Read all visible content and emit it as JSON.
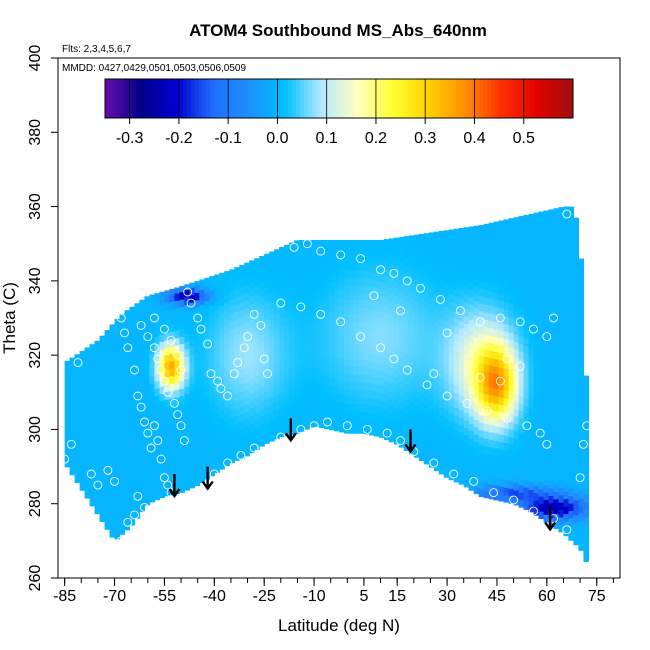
{
  "chart_data": {
    "type": "heatmap",
    "title": "ATOM4 Southbound MS_Abs_640nm",
    "subtitle_flights": "Flts: 2,3,4,5,6,7",
    "subtitle_dates": "MMDD: 0427,0429,0501,0503,0506,0509",
    "xlabel": "Latitude (deg N)",
    "ylabel": "Theta (C)",
    "xlim": [
      -87,
      82
    ],
    "ylim": [
      260,
      400
    ],
    "x_ticks": [
      "-85",
      "-70",
      "-55",
      "-40",
      "-25",
      "-10",
      "5",
      "15",
      "30",
      "45",
      "60",
      "75"
    ],
    "y_ticks": [
      "260",
      "280",
      "300",
      "320",
      "340",
      "360",
      "380",
      "400"
    ],
    "colorbar": {
      "min": -0.35,
      "max": 0.6,
      "ticks": [
        "-0.3",
        "-0.2",
        "-0.1",
        "0.0",
        "0.1",
        "0.2",
        "0.3",
        "0.4",
        "0.5"
      ],
      "colors": [
        "#6a0dad",
        "#00008b",
        "#0000d0",
        "#1f6fff",
        "#1e90ff",
        "#00bfff",
        "#b0e8ff",
        "#ffffc0",
        "#ffff33",
        "#ffd000",
        "#ff9000",
        "#ff3000",
        "#e00000",
        "#a01010"
      ]
    },
    "background_value": 0.0,
    "domain_top": [
      [
        -85,
        318
      ],
      [
        -75,
        324
      ],
      [
        -68,
        331
      ],
      [
        -60,
        336
      ],
      [
        -52,
        338
      ],
      [
        -45,
        340
      ],
      [
        -35,
        343
      ],
      [
        -25,
        347
      ],
      [
        -15,
        351
      ],
      [
        -5,
        351
      ],
      [
        10,
        351
      ],
      [
        25,
        353
      ],
      [
        40,
        355
      ],
      [
        55,
        358
      ],
      [
        65,
        360
      ],
      [
        68,
        360
      ],
      [
        70,
        352
      ],
      [
        71,
        328
      ],
      [
        72,
        310
      ]
    ],
    "domain_bottom": [
      [
        -85,
        291
      ],
      [
        -80,
        284
      ],
      [
        -75,
        277
      ],
      [
        -70,
        270
      ],
      [
        -65,
        274
      ],
      [
        -60,
        280
      ],
      [
        -55,
        282
      ],
      [
        -50,
        283
      ],
      [
        -45,
        285
      ],
      [
        -40,
        288
      ],
      [
        -35,
        291
      ],
      [
        -30,
        293
      ],
      [
        -25,
        296
      ],
      [
        -20,
        298
      ],
      [
        -15,
        299
      ],
      [
        -10,
        301
      ],
      [
        -5,
        300
      ],
      [
        0,
        299
      ],
      [
        5,
        299
      ],
      [
        10,
        298
      ],
      [
        15,
        296
      ],
      [
        20,
        293
      ],
      [
        25,
        290
      ],
      [
        30,
        287
      ],
      [
        35,
        285
      ],
      [
        40,
        282
      ],
      [
        45,
        281
      ],
      [
        50,
        280
      ],
      [
        55,
        278
      ],
      [
        60,
        275
      ],
      [
        65,
        272
      ],
      [
        70,
        268
      ],
      [
        72,
        264
      ]
    ],
    "anomalies": [
      {
        "lat": -53,
        "theta": 317,
        "value": 0.35,
        "rx": 4,
        "ry": 6
      },
      {
        "lat": 45,
        "theta": 312,
        "value": 0.3,
        "rx": 6,
        "ry": 10
      },
      {
        "lat": 40,
        "theta": 318,
        "value": 0.15,
        "rx": 10,
        "ry": 14
      },
      {
        "lat": -48,
        "theta": 336,
        "value": -0.25,
        "rx": 6,
        "ry": 2
      },
      {
        "lat": 62,
        "theta": 279,
        "value": -0.25,
        "rx": 10,
        "ry": 3
      },
      {
        "lat": 50,
        "theta": 283,
        "value": -0.15,
        "rx": 12,
        "ry": 2
      },
      {
        "lat": -30,
        "theta": 320,
        "value": 0.08,
        "rx": 12,
        "ry": 16
      },
      {
        "lat": 10,
        "theta": 325,
        "value": 0.07,
        "rx": 18,
        "ry": 18
      }
    ],
    "observations": [
      [
        -85,
        292
      ],
      [
        -83,
        296
      ],
      [
        -81,
        318
      ],
      [
        -77,
        288
      ],
      [
        -75,
        285
      ],
      [
        -72,
        289
      ],
      [
        -70,
        286
      ],
      [
        -68,
        270
      ],
      [
        -66,
        275
      ],
      [
        -64,
        277
      ],
      [
        -63,
        282
      ],
      [
        -61,
        279
      ],
      [
        -68,
        330
      ],
      [
        -67,
        326
      ],
      [
        -66,
        322
      ],
      [
        -64,
        316
      ],
      [
        -63,
        309
      ],
      [
        -62,
        306
      ],
      [
        -61,
        302
      ],
      [
        -60,
        299
      ],
      [
        -59,
        295
      ],
      [
        -58,
        301
      ],
      [
        -57,
        297
      ],
      [
        -56,
        292
      ],
      [
        -55,
        287
      ],
      [
        -54,
        285
      ],
      [
        -53,
        283
      ],
      [
        -62,
        328
      ],
      [
        -60,
        325
      ],
      [
        -58,
        322
      ],
      [
        -57,
        319
      ],
      [
        -56,
        316
      ],
      [
        -55,
        313
      ],
      [
        -54,
        310
      ],
      [
        -52,
        307
      ],
      [
        -51,
        304
      ],
      [
        -50,
        301
      ],
      [
        -49,
        297
      ],
      [
        -58,
        330
      ],
      [
        -55,
        327
      ],
      [
        -53,
        324
      ],
      [
        -51,
        320
      ],
      [
        -50,
        316
      ],
      [
        -48,
        337
      ],
      [
        -47,
        334
      ],
      [
        -45,
        330
      ],
      [
        -44,
        327
      ],
      [
        -42,
        323
      ],
      [
        -41,
        315
      ],
      [
        -39,
        313
      ],
      [
        -38,
        311
      ],
      [
        -36,
        309
      ],
      [
        -34,
        315
      ],
      [
        -33,
        318
      ],
      [
        -31,
        322
      ],
      [
        -30,
        325
      ],
      [
        -28,
        331
      ],
      [
        -26,
        328
      ],
      [
        -25,
        319
      ],
      [
        -24,
        315
      ],
      [
        -40,
        288
      ],
      [
        -36,
        291
      ],
      [
        -32,
        293
      ],
      [
        -28,
        295
      ],
      [
        -20,
        298
      ],
      [
        -14,
        300
      ],
      [
        -10,
        301
      ],
      [
        -6,
        302
      ],
      [
        0,
        301
      ],
      [
        6,
        300
      ],
      [
        12,
        299
      ],
      [
        16,
        297
      ],
      [
        20,
        294
      ],
      [
        26,
        291
      ],
      [
        32,
        288
      ],
      [
        38,
        286
      ],
      [
        44,
        283
      ],
      [
        50,
        281
      ],
      [
        56,
        278
      ],
      [
        62,
        276
      ],
      [
        66,
        273
      ],
      [
        70,
        287
      ],
      [
        71,
        296
      ],
      [
        72,
        301
      ],
      [
        -16,
        349
      ],
      [
        -12,
        350
      ],
      [
        -8,
        348
      ],
      [
        -2,
        347
      ],
      [
        4,
        346
      ],
      [
        10,
        343
      ],
      [
        14,
        342
      ],
      [
        18,
        340
      ],
      [
        22,
        338
      ],
      [
        28,
        335
      ],
      [
        34,
        332
      ],
      [
        40,
        329
      ],
      [
        46,
        330
      ],
      [
        52,
        329
      ],
      [
        56,
        327
      ],
      [
        60,
        325
      ],
      [
        66,
        358
      ],
      [
        -20,
        334
      ],
      [
        -14,
        333
      ],
      [
        -8,
        331
      ],
      [
        -2,
        329
      ],
      [
        4,
        325
      ],
      [
        10,
        322
      ],
      [
        14,
        319
      ],
      [
        18,
        316
      ],
      [
        24,
        312
      ],
      [
        30,
        309
      ],
      [
        36,
        307
      ],
      [
        42,
        305
      ],
      [
        48,
        303
      ],
      [
        54,
        301
      ],
      [
        58,
        299
      ],
      [
        60,
        296
      ],
      [
        62,
        330
      ],
      [
        8,
        336
      ],
      [
        16,
        332
      ],
      [
        30,
        326
      ],
      [
        48,
        319
      ],
      [
        52,
        317
      ],
      [
        26,
        315
      ],
      [
        40,
        314
      ],
      [
        46,
        313
      ]
    ],
    "arrows": [
      {
        "lat": -52,
        "theta": 288
      },
      {
        "lat": -42,
        "theta": 290
      },
      {
        "lat": -17,
        "theta": 303
      },
      {
        "lat": 19,
        "theta": 300
      },
      {
        "lat": 61,
        "theta": 279
      }
    ]
  }
}
